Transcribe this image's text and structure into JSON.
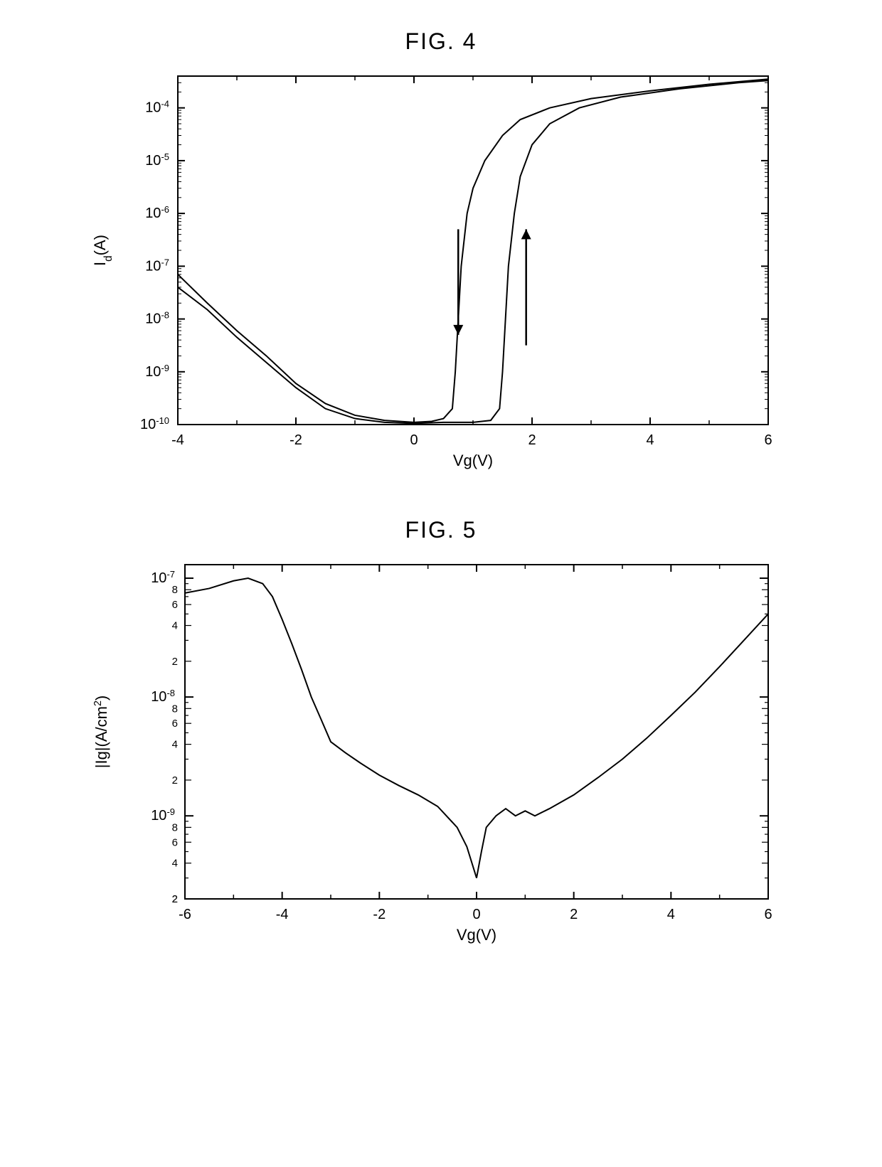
{
  "fig4": {
    "title": "FIG. 4",
    "type": "line",
    "xlabel": "Vg(V)",
    "ylabel": "Id(A)",
    "xlim": [
      -4,
      6
    ],
    "ylim": [
      1e-10,
      0.0004
    ],
    "yscale": "log",
    "xticks": [
      -4,
      -2,
      0,
      2,
      4,
      6
    ],
    "ytick_exponents": [
      -10,
      -9,
      -8,
      -7,
      -6,
      -5,
      -4
    ],
    "ytick_labels": [
      "10⁻¹⁰",
      "10⁻⁹",
      "10⁻⁸",
      "10⁻⁷",
      "10⁻⁶",
      "10⁻⁵",
      "10⁻⁴"
    ],
    "line_color": "#000000",
    "line_width": 2,
    "background_color": "#ffffff",
    "axis_color": "#000000",
    "font_size_label": 22,
    "font_size_tick": 20,
    "curves": {
      "up_sweep": [
        [
          -4,
          4e-08
        ],
        [
          -3.5,
          1.5e-08
        ],
        [
          -3,
          4.5e-09
        ],
        [
          -2.5,
          1.5e-09
        ],
        [
          -2,
          5e-10
        ],
        [
          -1.5,
          2e-10
        ],
        [
          -1,
          1.3e-10
        ],
        [
          -0.5,
          1.1e-10
        ],
        [
          0,
          1.05e-10
        ],
        [
          0.5,
          1.1e-10
        ],
        [
          1.0,
          1.1e-10
        ],
        [
          1.3,
          1.2e-10
        ],
        [
          1.45,
          2e-10
        ],
        [
          1.5,
          1e-09
        ],
        [
          1.55,
          1e-08
        ],
        [
          1.6,
          1e-07
        ],
        [
          1.7,
          1e-06
        ],
        [
          1.8,
          5e-06
        ],
        [
          2.0,
          2e-05
        ],
        [
          2.3,
          5e-05
        ],
        [
          2.8,
          0.0001
        ],
        [
          3.5,
          0.00016
        ],
        [
          4.5,
          0.00023
        ],
        [
          5.5,
          0.0003
        ],
        [
          6,
          0.00033
        ]
      ],
      "down_sweep": [
        [
          6,
          0.00035
        ],
        [
          5,
          0.00028
        ],
        [
          4,
          0.00021
        ],
        [
          3,
          0.00015
        ],
        [
          2.3,
          0.0001
        ],
        [
          1.8,
          6e-05
        ],
        [
          1.5,
          3e-05
        ],
        [
          1.2,
          1e-05
        ],
        [
          1.0,
          3e-06
        ],
        [
          0.9,
          1e-06
        ],
        [
          0.8,
          1e-07
        ],
        [
          0.75,
          1e-08
        ],
        [
          0.7,
          1e-09
        ],
        [
          0.65,
          2e-10
        ],
        [
          0.5,
          1.3e-10
        ],
        [
          0.3,
          1.15e-10
        ],
        [
          0,
          1.1e-10
        ],
        [
          -0.5,
          1.2e-10
        ],
        [
          -1,
          1.5e-10
        ],
        [
          -1.5,
          2.5e-10
        ],
        [
          -2,
          6e-10
        ],
        [
          -2.5,
          2e-09
        ],
        [
          -3,
          6e-09
        ],
        [
          -3.5,
          2e-08
        ],
        [
          -4,
          7e-08
        ]
      ]
    },
    "arrows": {
      "up": {
        "x": 1.9,
        "y_from_exp": -8.5,
        "y_to_exp": -6.3,
        "color": "#000000"
      },
      "down": {
        "x": 0.75,
        "y_from_exp": -6.3,
        "y_to_exp": -8.3,
        "color": "#000000"
      }
    }
  },
  "fig5": {
    "title": "FIG. 5",
    "type": "line",
    "xlabel": "Vg(V)",
    "ylabel": "|Ig|(A/cm²)",
    "xlim": [
      -6,
      6
    ],
    "ylim": [
      2e-10,
      1.3e-07
    ],
    "yscale": "log",
    "xticks": [
      -6,
      -4,
      -2,
      0,
      2,
      4,
      6
    ],
    "ytick_majors_exp": [
      -9,
      -8,
      -7
    ],
    "ytick_labels_major": [
      "10⁻⁹",
      "10⁻⁸",
      "10⁻⁷"
    ],
    "ytick_minor_labels": [
      "2",
      "4",
      "6",
      "8",
      "2",
      "4",
      "6",
      "8",
      "2",
      "4",
      "6",
      "8"
    ],
    "line_color": "#000000",
    "line_width": 2,
    "background_color": "#ffffff",
    "axis_color": "#000000",
    "font_size_label": 22,
    "font_size_tick": 20,
    "curve": [
      [
        -6,
        7.5e-08
      ],
      [
        -5.5,
        8.2e-08
      ],
      [
        -5.0,
        9.5e-08
      ],
      [
        -4.7,
        1e-07
      ],
      [
        -4.4,
        9e-08
      ],
      [
        -4.2,
        7e-08
      ],
      [
        -4.0,
        4.5e-08
      ],
      [
        -3.8,
        2.8e-08
      ],
      [
        -3.6,
        1.7e-08
      ],
      [
        -3.4,
        1e-08
      ],
      [
        -3.2,
        6.5e-09
      ],
      [
        -3.0,
        4.2e-09
      ],
      [
        -2.7,
        3.4e-09
      ],
      [
        -2.4,
        2.8e-09
      ],
      [
        -2.0,
        2.2e-09
      ],
      [
        -1.6,
        1.8e-09
      ],
      [
        -1.2,
        1.5e-09
      ],
      [
        -0.8,
        1.2e-09
      ],
      [
        -0.4,
        8e-10
      ],
      [
        -0.2,
        5.5e-10
      ],
      [
        0.0,
        3e-10
      ],
      [
        0.1,
        5e-10
      ],
      [
        0.2,
        8e-10
      ],
      [
        0.4,
        1e-09
      ],
      [
        0.6,
        1.15e-09
      ],
      [
        0.8,
        1e-09
      ],
      [
        1.0,
        1.1e-09
      ],
      [
        1.2,
        1e-09
      ],
      [
        1.5,
        1.15e-09
      ],
      [
        2.0,
        1.5e-09
      ],
      [
        2.5,
        2.1e-09
      ],
      [
        3.0,
        3e-09
      ],
      [
        3.5,
        4.5e-09
      ],
      [
        4.0,
        7e-09
      ],
      [
        4.5,
        1.1e-08
      ],
      [
        5.0,
        1.8e-08
      ],
      [
        5.5,
        3e-08
      ],
      [
        6.0,
        5e-08
      ]
    ]
  }
}
